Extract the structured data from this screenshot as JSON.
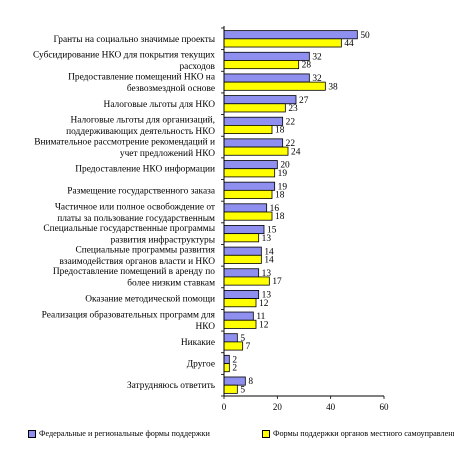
{
  "chart_data": {
    "type": "bar",
    "orientation": "horizontal",
    "categories": [
      "Гранты на социально значимые проекты",
      "Субсидирование НКО для покрытия текущих расходов",
      "Предоставление помещений НКО на безвозмездной основе",
      "Налоговые льготы для НКО",
      "Налоговые льготы для организаций, поддерживающих деятельность НКО",
      "Внимательное рассмотрение рекомендаций и учет предложений НКО",
      "Предоставление НКО информации",
      "Размещение государственного заказа",
      "Частичное или полное освобождение от платы за пользование государственным",
      "Специальные государственные программы развития инфраструктуры",
      "Специальные программы развития взаимодействия органов власти и НКО",
      "Предоставление помещений в аренду по более низким ставкам",
      "Оказание методической помощи",
      "Реализация образовательных программ для НКО",
      "Никакие",
      "Другое",
      "Затрудняюсь ответить"
    ],
    "series": [
      {
        "name": "Федеральные и региональные формы поддержки",
        "color": "#8f8fef",
        "values": [
          50,
          32,
          32,
          27,
          22,
          22,
          20,
          19,
          16,
          15,
          14,
          13,
          13,
          11,
          5,
          2,
          8
        ]
      },
      {
        "name": "Формы поддержки органов местного самоуправления",
        "color": "#ffff00",
        "values": [
          44,
          28,
          38,
          23,
          18,
          24,
          19,
          18,
          18,
          13,
          14,
          17,
          12,
          12,
          7,
          2,
          5
        ]
      }
    ],
    "xlim": [
      0,
      60
    ],
    "xticks": [
      "0",
      "20",
      "40",
      "60"
    ],
    "legend_position": "bottom",
    "grid": false
  }
}
